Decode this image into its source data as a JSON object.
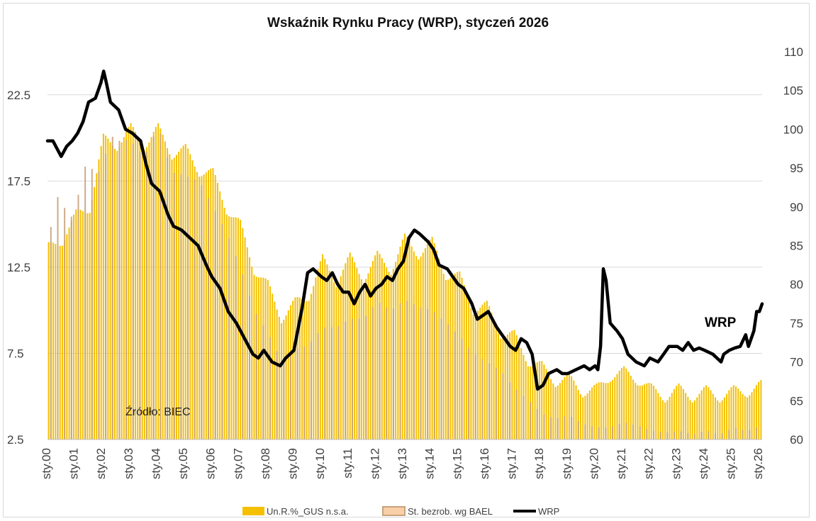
{
  "chart_data": {
    "type": "bar",
    "title": "Wskaźnik Rynku Pracy (WRP), styczeń 2026",
    "x_labels": [
      "sty.00",
      "sty.01",
      "sty.02",
      "sty.03",
      "sty.04",
      "sty.05",
      "sty.06",
      "sty.07",
      "sty.08",
      "sty.09",
      "sty.10",
      "sty.11",
      "sty.12",
      "sty.13",
      "sty.14",
      "sty.15",
      "sty.16",
      "sty.17",
      "sty.18",
      "sty.19",
      "sty.20",
      "sty.21",
      "sty.22",
      "sty.23",
      "sty.24",
      "sty.25",
      "sty.26"
    ],
    "y_left": {
      "ticks": [
        "2.5",
        "7.5",
        "12.5",
        "17.5",
        "22.5"
      ],
      "ylim": [
        2.5,
        25
      ]
    },
    "y_right": {
      "ticks": [
        "60",
        "65",
        "70",
        "75",
        "80",
        "85",
        "90",
        "95",
        "100",
        "105",
        "110"
      ],
      "ylim": [
        60,
        110
      ]
    },
    "series": [
      {
        "name": "Un.R.%_GUS n.s.a.",
        "axis": "left",
        "color": "#f5c000",
        "anchors": [
          [
            2000.0,
            13.7
          ],
          [
            2000.5,
            14.0
          ],
          [
            2001.0,
            15.6
          ],
          [
            2001.5,
            15.9
          ],
          [
            2002.0,
            20.0
          ],
          [
            2002.5,
            19.5
          ],
          [
            2003.0,
            20.6
          ],
          [
            2003.5,
            19.5
          ],
          [
            2004.0,
            20.6
          ],
          [
            2004.5,
            19.0
          ],
          [
            2005.0,
            19.4
          ],
          [
            2005.5,
            18.0
          ],
          [
            2006.0,
            18.0
          ],
          [
            2006.5,
            15.8
          ],
          [
            2007.0,
            15.0
          ],
          [
            2007.5,
            12.3
          ],
          [
            2008.0,
            11.5
          ],
          [
            2008.5,
            9.5
          ],
          [
            2009.0,
            10.5
          ],
          [
            2009.5,
            10.8
          ],
          [
            2010.0,
            13.0
          ],
          [
            2010.5,
            11.6
          ],
          [
            2011.0,
            13.1
          ],
          [
            2011.5,
            11.8
          ],
          [
            2012.0,
            13.2
          ],
          [
            2012.5,
            12.3
          ],
          [
            2013.0,
            14.2
          ],
          [
            2013.5,
            13.2
          ],
          [
            2014.0,
            14.0
          ],
          [
            2014.5,
            12.0
          ],
          [
            2015.0,
            12.0
          ],
          [
            2015.5,
            10.0
          ],
          [
            2016.0,
            10.3
          ],
          [
            2016.5,
            8.6
          ],
          [
            2017.0,
            8.6
          ],
          [
            2017.5,
            7.0
          ],
          [
            2018.0,
            6.8
          ],
          [
            2018.5,
            5.8
          ],
          [
            2019.0,
            6.1
          ],
          [
            2019.5,
            5.2
          ],
          [
            2020.0,
            5.5
          ],
          [
            2020.5,
            6.1
          ],
          [
            2021.0,
            6.5
          ],
          [
            2021.5,
            5.9
          ],
          [
            2022.0,
            5.5
          ],
          [
            2022.5,
            4.9
          ],
          [
            2023.0,
            5.5
          ],
          [
            2023.5,
            4.9
          ],
          [
            2024.0,
            5.4
          ],
          [
            2024.5,
            4.9
          ],
          [
            2025.0,
            5.4
          ],
          [
            2025.5,
            5.2
          ],
          [
            2026.0,
            5.7
          ]
        ]
      },
      {
        "name": "St. bezrob. wg BAEL",
        "axis": "left",
        "color": "#c8a27c",
        "anchors": [
          [
            2000.0,
            13.9
          ],
          [
            2000.25,
            16.7
          ],
          [
            2000.5,
            16.3
          ],
          [
            2000.75,
            15.2
          ],
          [
            2001.0,
            15.9
          ],
          [
            2001.25,
            18.3
          ],
          [
            2001.5,
            18.4
          ],
          [
            2001.75,
            17.8
          ],
          [
            2002.0,
            18.5
          ],
          [
            2002.25,
            20.2
          ],
          [
            2002.5,
            19.8
          ],
          [
            2002.75,
            19.9
          ],
          [
            2003.0,
            19.8
          ],
          [
            2003.5,
            18.9
          ],
          [
            2004.0,
            20.7
          ],
          [
            2004.5,
            18.0
          ],
          [
            2005.0,
            17.8
          ],
          [
            2005.5,
            17.5
          ],
          [
            2006.0,
            16.0
          ],
          [
            2006.5,
            14.5
          ],
          [
            2007.0,
            12.5
          ],
          [
            2007.5,
            10.0
          ],
          [
            2008.0,
            8.7
          ],
          [
            2008.5,
            7.1
          ],
          [
            2009.0,
            7.7
          ],
          [
            2009.5,
            8.0
          ],
          [
            2010.0,
            9.0
          ],
          [
            2010.5,
            9.0
          ],
          [
            2011.0,
            9.5
          ],
          [
            2011.5,
            9.5
          ],
          [
            2012.0,
            10.5
          ],
          [
            2012.5,
            10.0
          ],
          [
            2013.0,
            10.6
          ],
          [
            2013.5,
            10.2
          ],
          [
            2014.0,
            10.0
          ],
          [
            2014.5,
            9.3
          ],
          [
            2015.0,
            8.5
          ],
          [
            2015.5,
            7.5
          ],
          [
            2016.0,
            7.0
          ],
          [
            2016.5,
            6.5
          ],
          [
            2017.0,
            5.5
          ],
          [
            2017.5,
            4.8
          ],
          [
            2018.0,
            4.0
          ],
          [
            2018.5,
            3.7
          ],
          [
            2019.0,
            3.9
          ],
          [
            2019.5,
            3.4
          ],
          [
            2020.0,
            3.2
          ],
          [
            2020.5,
            3.2
          ],
          [
            2021.0,
            3.5
          ],
          [
            2021.5,
            3.3
          ],
          [
            2022.0,
            3.0
          ],
          [
            2022.5,
            2.9
          ],
          [
            2023.0,
            3.0
          ],
          [
            2023.5,
            2.8
          ],
          [
            2024.0,
            3.0
          ],
          [
            2024.5,
            2.8
          ],
          [
            2025.0,
            3.2
          ],
          [
            2025.5,
            3.0
          ],
          [
            2026.0,
            3.3
          ]
        ]
      },
      {
        "name": "WRP",
        "axis": "right",
        "color": "#000000",
        "anchors": [
          [
            2000.0,
            98.5
          ],
          [
            2000.2,
            98.5
          ],
          [
            2000.35,
            97.5
          ],
          [
            2000.5,
            96.5
          ],
          [
            2000.7,
            97.8
          ],
          [
            2000.9,
            98.5
          ],
          [
            2001.1,
            99.5
          ],
          [
            2001.3,
            101.0
          ],
          [
            2001.5,
            103.5
          ],
          [
            2001.75,
            104.0
          ],
          [
            2001.95,
            106.0
          ],
          [
            2002.05,
            107.5
          ],
          [
            2002.15,
            106.0
          ],
          [
            2002.3,
            103.5
          ],
          [
            2002.6,
            102.5
          ],
          [
            2002.85,
            100.0
          ],
          [
            2003.1,
            99.5
          ],
          [
            2003.4,
            98.5
          ],
          [
            2003.6,
            95.5
          ],
          [
            2003.8,
            93.0
          ],
          [
            2004.1,
            92.0
          ],
          [
            2004.4,
            89.0
          ],
          [
            2004.6,
            87.5
          ],
          [
            2004.9,
            87.0
          ],
          [
            2005.2,
            86.0
          ],
          [
            2005.5,
            85.0
          ],
          [
            2005.8,
            82.5
          ],
          [
            2006.0,
            81.0
          ],
          [
            2006.3,
            79.5
          ],
          [
            2006.6,
            76.5
          ],
          [
            2006.9,
            75.0
          ],
          [
            2007.2,
            73.0
          ],
          [
            2007.5,
            71.0
          ],
          [
            2007.7,
            70.5
          ],
          [
            2007.9,
            71.5
          ],
          [
            2008.2,
            70.0
          ],
          [
            2008.5,
            69.5
          ],
          [
            2008.7,
            70.5
          ],
          [
            2009.0,
            71.5
          ],
          [
            2009.3,
            77.0
          ],
          [
            2009.5,
            81.5
          ],
          [
            2009.7,
            82.0
          ],
          [
            2010.0,
            81.0
          ],
          [
            2010.2,
            80.5
          ],
          [
            2010.4,
            81.5
          ],
          [
            2010.6,
            80.0
          ],
          [
            2010.8,
            79.0
          ],
          [
            2011.0,
            79.0
          ],
          [
            2011.2,
            77.5
          ],
          [
            2011.4,
            79.0
          ],
          [
            2011.6,
            80.0
          ],
          [
            2011.8,
            78.5
          ],
          [
            2012.0,
            79.5
          ],
          [
            2012.2,
            80.0
          ],
          [
            2012.4,
            81.0
          ],
          [
            2012.6,
            80.5
          ],
          [
            2012.8,
            82.0
          ],
          [
            2013.0,
            83.0
          ],
          [
            2013.2,
            86.0
          ],
          [
            2013.4,
            87.0
          ],
          [
            2013.6,
            86.5
          ],
          [
            2013.9,
            85.5
          ],
          [
            2014.1,
            84.5
          ],
          [
            2014.3,
            82.5
          ],
          [
            2014.6,
            82.0
          ],
          [
            2014.8,
            81.0
          ],
          [
            2015.0,
            80.0
          ],
          [
            2015.2,
            79.5
          ],
          [
            2015.5,
            77.5
          ],
          [
            2015.7,
            75.5
          ],
          [
            2015.9,
            76.0
          ],
          [
            2016.1,
            76.5
          ],
          [
            2016.4,
            74.5
          ],
          [
            2016.6,
            73.5
          ],
          [
            2016.9,
            72.0
          ],
          [
            2017.1,
            71.5
          ],
          [
            2017.3,
            73.0
          ],
          [
            2017.5,
            72.5
          ],
          [
            2017.7,
            71.0
          ],
          [
            2017.9,
            66.5
          ],
          [
            2018.1,
            67.0
          ],
          [
            2018.3,
            68.5
          ],
          [
            2018.6,
            69.0
          ],
          [
            2018.8,
            68.5
          ],
          [
            2019.0,
            68.5
          ],
          [
            2019.3,
            69.0
          ],
          [
            2019.6,
            69.5
          ],
          [
            2019.8,
            69.0
          ],
          [
            2020.0,
            69.5
          ],
          [
            2020.1,
            69.0
          ],
          [
            2020.2,
            72.0
          ],
          [
            2020.3,
            82.0
          ],
          [
            2020.4,
            80.5
          ],
          [
            2020.55,
            75.0
          ],
          [
            2020.8,
            74.0
          ],
          [
            2021.0,
            73.0
          ],
          [
            2021.2,
            71.0
          ],
          [
            2021.5,
            70.0
          ],
          [
            2021.8,
            69.5
          ],
          [
            2022.0,
            70.5
          ],
          [
            2022.3,
            70.0
          ],
          [
            2022.5,
            71.0
          ],
          [
            2022.7,
            72.0
          ],
          [
            2023.0,
            72.0
          ],
          [
            2023.2,
            71.5
          ],
          [
            2023.4,
            72.5
          ],
          [
            2023.6,
            71.5
          ],
          [
            2023.8,
            71.8
          ],
          [
            2024.0,
            71.5
          ],
          [
            2024.3,
            71.0
          ],
          [
            2024.6,
            70.0
          ],
          [
            2024.7,
            71.0
          ],
          [
            2024.9,
            71.5
          ],
          [
            2025.1,
            71.8
          ],
          [
            2025.3,
            72.0
          ],
          [
            2025.5,
            73.5
          ],
          [
            2025.6,
            72.0
          ],
          [
            2025.8,
            74.0
          ],
          [
            2025.9,
            76.5
          ],
          [
            2026.0,
            76.5
          ],
          [
            2026.1,
            77.5
          ]
        ]
      }
    ],
    "annotations": {
      "source": "Źródło: BIEC",
      "wrp_label": "WRP"
    },
    "legend": {
      "position": "bottom"
    }
  }
}
